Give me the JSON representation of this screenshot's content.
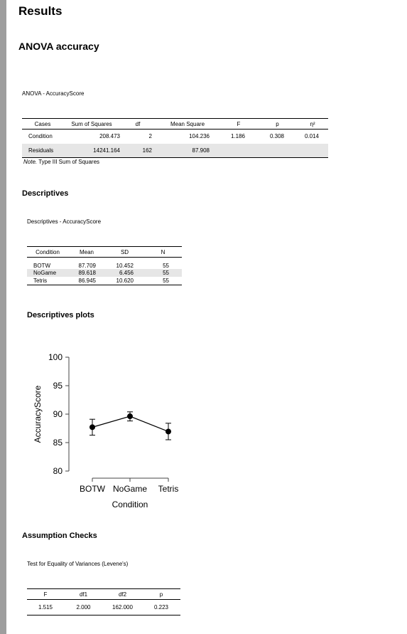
{
  "results_title": "Results",
  "anova_title": "ANOVA accuracy",
  "anova": {
    "caption": "ANOVA - AccuracyScore",
    "headers": [
      "Cases",
      "Sum of Squares",
      "df",
      "Mean Square",
      "F",
      "p",
      "η²"
    ],
    "rows": [
      [
        "Condition",
        "208.473",
        "2",
        "104.236",
        "1.186",
        "0.308",
        "0.014"
      ],
      [
        "Residuals",
        "14241.164",
        "162",
        "87.908",
        "",
        "",
        ""
      ]
    ],
    "note_label": "Note.",
    "note_text": " Type III Sum of Squares"
  },
  "descriptives": {
    "title": "Descriptives",
    "caption": "Descriptives - AccuracyScore",
    "headers": [
      "Condition",
      "Mean",
      "SD",
      "N"
    ],
    "rows": [
      [
        "BOTW",
        "87.709",
        "10.452",
        "55"
      ],
      [
        "NoGame",
        "89.618",
        "6.456",
        "55"
      ],
      [
        "Tetris",
        "86.945",
        "10.620",
        "55"
      ]
    ]
  },
  "plots_title": "Descriptives plots",
  "chart_data": {
    "type": "line",
    "categories": [
      "BOTW",
      "NoGame",
      "Tetris"
    ],
    "values": [
      87.709,
      89.618,
      86.945
    ],
    "ci_lower": [
      86.3,
      88.8,
      85.5
    ],
    "ci_upper": [
      89.1,
      90.4,
      88.4
    ],
    "xlabel": "Condition",
    "ylabel": "AccuracyScore",
    "ylim": [
      80,
      100
    ],
    "yticks": [
      80,
      85,
      90,
      95,
      100
    ],
    "grid": false,
    "line_color": "#000000"
  },
  "assumption": {
    "title": "Assumption Checks",
    "caption": "Test for Equality of Variances (Levene's)",
    "headers": [
      "F",
      "df1",
      "df2",
      "p"
    ],
    "rows": [
      [
        "1.515",
        "2.000",
        "162.000",
        "0.223"
      ]
    ]
  }
}
